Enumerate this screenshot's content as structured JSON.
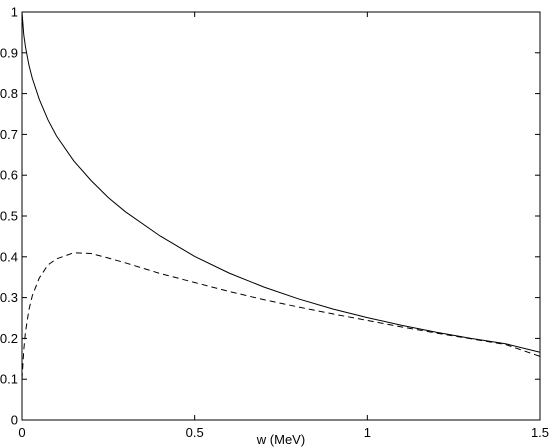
{
  "chart_data": {
    "type": "line",
    "title": "",
    "xlabel": "w (MeV)",
    "ylabel": "",
    "xlim": [
      0,
      1.5
    ],
    "ylim": [
      0,
      1
    ],
    "grid": false,
    "x_ticks": [
      0,
      0.5,
      1,
      1.5
    ],
    "x_tick_labels": [
      "0",
      "0.5",
      "1",
      "1.5"
    ],
    "y_ticks": [
      0,
      0.1,
      0.2,
      0.3,
      0.4,
      0.5,
      0.6,
      0.7,
      0.8,
      0.9,
      1
    ],
    "y_tick_labels": [
      "0",
      "0.1",
      "0.2",
      "0.3",
      "0.4",
      "0.5",
      "0.6",
      "0.7",
      "0.8",
      "0.9",
      "1"
    ],
    "series": [
      {
        "style": "solid",
        "color": "#000000",
        "x": [
          0,
          0.005,
          0.01,
          0.02,
          0.03,
          0.05,
          0.075,
          0.1,
          0.15,
          0.2,
          0.25,
          0.3,
          0.4,
          0.5,
          0.6,
          0.7,
          0.8,
          0.9,
          1.0,
          1.1,
          1.2,
          1.3,
          1.4,
          1.5
        ],
        "y": [
          1.0,
          0.945,
          0.915,
          0.87,
          0.837,
          0.786,
          0.736,
          0.696,
          0.635,
          0.587,
          0.545,
          0.51,
          0.451,
          0.401,
          0.36,
          0.326,
          0.297,
          0.272,
          0.251,
          0.232,
          0.215,
          0.2,
          0.187,
          0.166
        ]
      },
      {
        "style": "dashed",
        "color": "#000000",
        "x": [
          0,
          0.005,
          0.01,
          0.02,
          0.03,
          0.05,
          0.075,
          0.1,
          0.15,
          0.2,
          0.25,
          0.3,
          0.4,
          0.5,
          0.6,
          0.7,
          0.8,
          0.9,
          1.0,
          1.1,
          1.2,
          1.3,
          1.4,
          1.5
        ],
        "y": [
          0.1,
          0.17,
          0.215,
          0.27,
          0.305,
          0.348,
          0.38,
          0.395,
          0.41,
          0.408,
          0.397,
          0.385,
          0.359,
          0.337,
          0.315,
          0.295,
          0.277,
          0.26,
          0.244,
          0.228,
          0.213,
          0.199,
          0.185,
          0.156
        ]
      }
    ]
  }
}
